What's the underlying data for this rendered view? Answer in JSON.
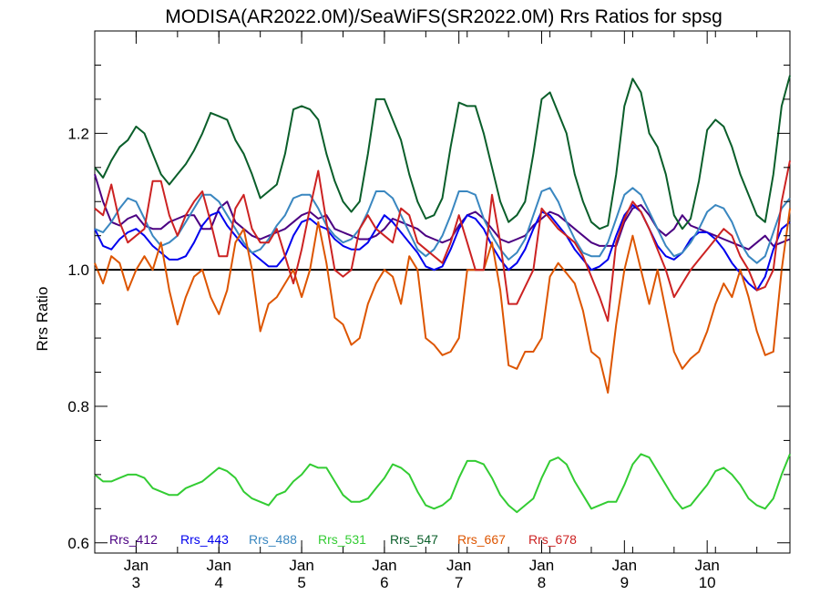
{
  "chart_data": {
    "type": "line",
    "title": "MODISA(AR2022.0M)/SeaWiFS(SR2022.0M)  Rrs Ratios for spsg",
    "xlabel": "",
    "ylabel": "Rrs Ratio",
    "x_range": [
      0,
      84
    ],
    "ylim": [
      0.585,
      1.35
    ],
    "y_ticks": [
      0.6,
      0.8,
      1.0,
      1.2
    ],
    "y_tick_labels": [
      "0.6",
      "0.8",
      "1.0",
      "1.2"
    ],
    "x_ticks": [
      {
        "month": "Jan",
        "day": "3",
        "x": 5
      },
      {
        "month": "Jan",
        "day": "4",
        "x": 15
      },
      {
        "month": "Jan",
        "day": "5",
        "x": 25
      },
      {
        "month": "Jan",
        "day": "6",
        "x": 35
      },
      {
        "month": "Jan",
        "day": "7",
        "x": 44
      },
      {
        "month": "Jan",
        "day": "8",
        "x": 54
      },
      {
        "month": "Jan",
        "day": "9",
        "x": 64
      },
      {
        "month": "Jan",
        "day": "10",
        "x": 74
      }
    ],
    "reference_line": 1.0,
    "grid": false,
    "legend_position": "bottom-left",
    "series": [
      {
        "name": "Rrs_412",
        "color": "#4b0082",
        "values": [
          1.14,
          1.1,
          1.07,
          1.065,
          1.075,
          1.08,
          1.065,
          1.06,
          1.06,
          1.07,
          1.075,
          1.08,
          1.08,
          1.06,
          1.06,
          1.09,
          1.1,
          1.07,
          1.06,
          1.05,
          1.045,
          1.05,
          1.055,
          1.06,
          1.07,
          1.08,
          1.085,
          1.075,
          1.08,
          1.06,
          1.055,
          1.05,
          1.045,
          1.045,
          1.05,
          1.06,
          1.075,
          1.07,
          1.065,
          1.06,
          1.05,
          1.045,
          1.04,
          1.045,
          1.065,
          1.08,
          1.085,
          1.075,
          1.06,
          1.045,
          1.04,
          1.045,
          1.05,
          1.065,
          1.075,
          1.085,
          1.08,
          1.07,
          1.06,
          1.05,
          1.04,
          1.035,
          1.035,
          1.035,
          1.07,
          1.09,
          1.095,
          1.08,
          1.06,
          1.05,
          1.06,
          1.08,
          1.065,
          1.06,
          1.055,
          1.05,
          1.045,
          1.04,
          1.035,
          1.03,
          1.04,
          1.05,
          1.035,
          1.04,
          1.045
        ]
      },
      {
        "name": "Rrs_443",
        "color": "#0000ee",
        "values": [
          1.06,
          1.035,
          1.03,
          1.045,
          1.055,
          1.06,
          1.05,
          1.035,
          1.025,
          1.015,
          1.015,
          1.02,
          1.04,
          1.065,
          1.08,
          1.085,
          1.065,
          1.05,
          1.035,
          1.025,
          1.015,
          1.005,
          1.005,
          1.02,
          1.05,
          1.07,
          1.075,
          1.065,
          1.06,
          1.045,
          1.035,
          1.03,
          1.03,
          1.04,
          1.06,
          1.08,
          1.07,
          1.055,
          1.04,
          1.025,
          1.005,
          1.0,
          1.005,
          1.03,
          1.06,
          1.08,
          1.075,
          1.06,
          1.035,
          1.015,
          1.0,
          1.01,
          1.03,
          1.06,
          1.085,
          1.08,
          1.065,
          1.05,
          1.03,
          1.015,
          1.0,
          1.005,
          1.015,
          1.05,
          1.08,
          1.095,
          1.085,
          1.06,
          1.035,
          1.02,
          1.015,
          1.025,
          1.045,
          1.055,
          1.055,
          1.045,
          1.03,
          1.01,
          0.995,
          0.98,
          0.97,
          0.99,
          1.03,
          1.06,
          1.07
        ]
      },
      {
        "name": "Rrs_488",
        "color": "#3a87c0",
        "values": [
          1.06,
          1.055,
          1.07,
          1.09,
          1.105,
          1.1,
          1.075,
          1.05,
          1.035,
          1.04,
          1.05,
          1.07,
          1.09,
          1.11,
          1.11,
          1.1,
          1.08,
          1.06,
          1.04,
          1.025,
          1.03,
          1.045,
          1.065,
          1.08,
          1.105,
          1.11,
          1.11,
          1.09,
          1.065,
          1.05,
          1.04,
          1.045,
          1.06,
          1.085,
          1.115,
          1.115,
          1.105,
          1.08,
          1.055,
          1.03,
          1.02,
          1.03,
          1.05,
          1.08,
          1.115,
          1.115,
          1.11,
          1.075,
          1.05,
          1.03,
          1.015,
          1.025,
          1.045,
          1.08,
          1.115,
          1.12,
          1.1,
          1.07,
          1.045,
          1.025,
          1.02,
          1.02,
          1.04,
          1.075,
          1.11,
          1.12,
          1.11,
          1.085,
          1.06,
          1.035,
          1.02,
          1.025,
          1.04,
          1.06,
          1.085,
          1.095,
          1.09,
          1.07,
          1.04,
          1.02,
          1.01,
          1.02,
          1.055,
          1.09,
          1.105
        ]
      },
      {
        "name": "Rrs_531",
        "color": "#33cc33",
        "values": [
          0.7,
          0.69,
          0.69,
          0.695,
          0.7,
          0.7,
          0.695,
          0.68,
          0.675,
          0.67,
          0.67,
          0.68,
          0.685,
          0.69,
          0.7,
          0.71,
          0.705,
          0.695,
          0.675,
          0.665,
          0.66,
          0.655,
          0.67,
          0.675,
          0.69,
          0.7,
          0.715,
          0.71,
          0.71,
          0.69,
          0.67,
          0.66,
          0.66,
          0.665,
          0.68,
          0.695,
          0.715,
          0.71,
          0.7,
          0.675,
          0.655,
          0.65,
          0.655,
          0.665,
          0.695,
          0.72,
          0.72,
          0.715,
          0.695,
          0.67,
          0.655,
          0.645,
          0.655,
          0.665,
          0.695,
          0.72,
          0.725,
          0.715,
          0.69,
          0.67,
          0.65,
          0.655,
          0.66,
          0.66,
          0.685,
          0.715,
          0.73,
          0.725,
          0.705,
          0.685,
          0.665,
          0.65,
          0.655,
          0.67,
          0.685,
          0.705,
          0.71,
          0.7,
          0.685,
          0.665,
          0.655,
          0.65,
          0.665,
          0.7,
          0.73
        ]
      },
      {
        "name": "Rrs_547",
        "color": "#0a5e2a",
        "values": [
          1.15,
          1.135,
          1.16,
          1.18,
          1.19,
          1.21,
          1.2,
          1.17,
          1.14,
          1.125,
          1.14,
          1.155,
          1.175,
          1.2,
          1.23,
          1.225,
          1.22,
          1.19,
          1.17,
          1.14,
          1.105,
          1.115,
          1.125,
          1.17,
          1.235,
          1.24,
          1.235,
          1.22,
          1.17,
          1.13,
          1.1,
          1.085,
          1.1,
          1.17,
          1.25,
          1.25,
          1.22,
          1.19,
          1.14,
          1.1,
          1.075,
          1.08,
          1.105,
          1.18,
          1.245,
          1.24,
          1.24,
          1.2,
          1.15,
          1.1,
          1.07,
          1.08,
          1.1,
          1.17,
          1.25,
          1.26,
          1.23,
          1.2,
          1.14,
          1.1,
          1.07,
          1.06,
          1.065,
          1.14,
          1.24,
          1.28,
          1.26,
          1.2,
          1.18,
          1.14,
          1.08,
          1.06,
          1.075,
          1.13,
          1.205,
          1.22,
          1.21,
          1.18,
          1.14,
          1.11,
          1.08,
          1.07,
          1.14,
          1.24,
          1.285
        ]
      },
      {
        "name": "Rrs_667",
        "color": "#dd5500",
        "values": [
          1.01,
          0.98,
          1.02,
          1.01,
          0.97,
          1.0,
          1.02,
          1.0,
          1.04,
          0.97,
          0.92,
          0.96,
          0.99,
          1.0,
          0.96,
          0.935,
          0.97,
          1.04,
          1.06,
          1.0,
          0.91,
          0.95,
          0.96,
          0.98,
          1.0,
          0.96,
          1.0,
          1.07,
          1.01,
          0.93,
          0.92,
          0.89,
          0.9,
          0.95,
          0.98,
          1.0,
          0.99,
          0.95,
          1.02,
          1.0,
          0.9,
          0.89,
          0.875,
          0.88,
          0.9,
          1.0,
          1.0,
          1.0,
          1.04,
          0.97,
          0.86,
          0.855,
          0.88,
          0.88,
          0.9,
          0.99,
          1.01,
          0.995,
          0.98,
          0.94,
          0.88,
          0.87,
          0.82,
          0.92,
          1.0,
          1.05,
          1.0,
          0.95,
          1.0,
          0.94,
          0.88,
          0.855,
          0.87,
          0.88,
          0.91,
          0.95,
          0.98,
          0.96,
          1.0,
          0.96,
          0.91,
          0.875,
          0.88,
          1.0,
          1.09
        ]
      },
      {
        "name": "Rrs_678",
        "color": "#cc2222",
        "values": [
          1.09,
          1.08,
          1.125,
          1.07,
          1.04,
          1.05,
          1.06,
          1.13,
          1.13,
          1.08,
          1.05,
          1.08,
          1.1,
          1.115,
          1.07,
          1.02,
          1.02,
          1.09,
          1.11,
          1.06,
          1.04,
          1.04,
          1.06,
          1.02,
          0.98,
          1.03,
          1.09,
          1.145,
          1.07,
          1.0,
          0.99,
          1.0,
          1.06,
          1.08,
          1.06,
          1.05,
          1.04,
          1.09,
          1.08,
          1.04,
          1.03,
          1.02,
          1.01,
          1.04,
          1.08,
          1.04,
          1.0,
          1.0,
          1.11,
          1.04,
          0.95,
          0.95,
          0.975,
          1.0,
          1.09,
          1.075,
          1.06,
          1.05,
          1.04,
          1.02,
          0.99,
          0.96,
          0.925,
          1.04,
          1.075,
          1.1,
          1.085,
          1.06,
          1.03,
          1.0,
          0.96,
          0.98,
          1.0,
          1.015,
          1.03,
          1.045,
          1.06,
          1.05,
          1.02,
          1.0,
          0.97,
          0.975,
          1.0,
          1.1,
          1.16
        ]
      }
    ]
  }
}
